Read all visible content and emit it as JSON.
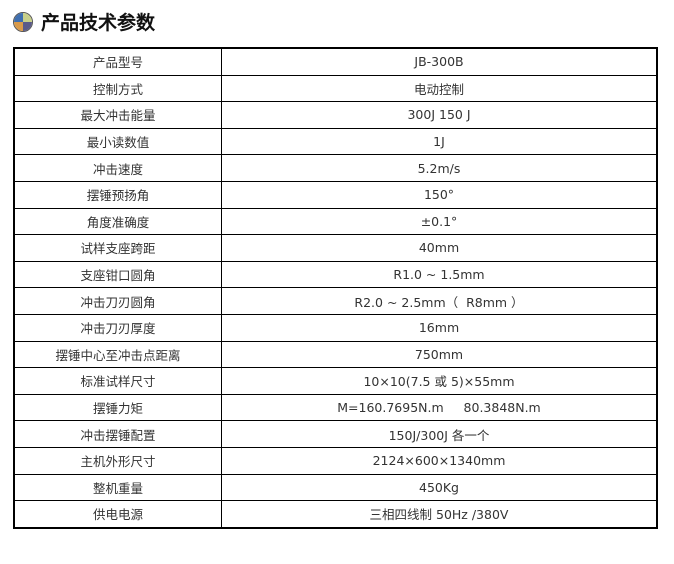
{
  "title": "产品技术参数",
  "rows": [
    {
      "label": "产品型号",
      "value": "JB-300B"
    },
    {
      "label": "控制方式",
      "value": "电动控制"
    },
    {
      "label": "最大冲击能量",
      "value": "300J 150 J"
    },
    {
      "label": "最小读数值",
      "value": "1J"
    },
    {
      "label": "冲击速度",
      "value": "5.2m/s"
    },
    {
      "label": "摆锤预扬角",
      "value": "150°"
    },
    {
      "label": "角度准确度",
      "value": "±0.1°"
    },
    {
      "label": "试样支座跨距",
      "value": "40mm"
    },
    {
      "label": "支座钳口圆角",
      "value": "R1.0 ~ 1.5mm"
    },
    {
      "label": "冲击刀刃圆角",
      "value": "R2.0 ~ 2.5mm（  R8mm ）"
    },
    {
      "label": "冲击刀刃厚度",
      "value": "16mm"
    },
    {
      "label": "摆锤中心至冲击点距离",
      "value": "750mm"
    },
    {
      "label": "标准试样尺寸",
      "value": "10×10(7.5 或 5)×55mm"
    },
    {
      "label": "摆锤力矩",
      "value": "M=160.7695N.m     80.3848N.m"
    },
    {
      "label": "冲击摆锤配置",
      "value": "150J/300J 各一个"
    },
    {
      "label": "主机外形尺寸",
      "value": "2124×600×1340mm"
    },
    {
      "label": "整机重量",
      "value": "450Kg"
    },
    {
      "label": "供电电源",
      "value": "三相四线制 50Hz /380V"
    }
  ]
}
